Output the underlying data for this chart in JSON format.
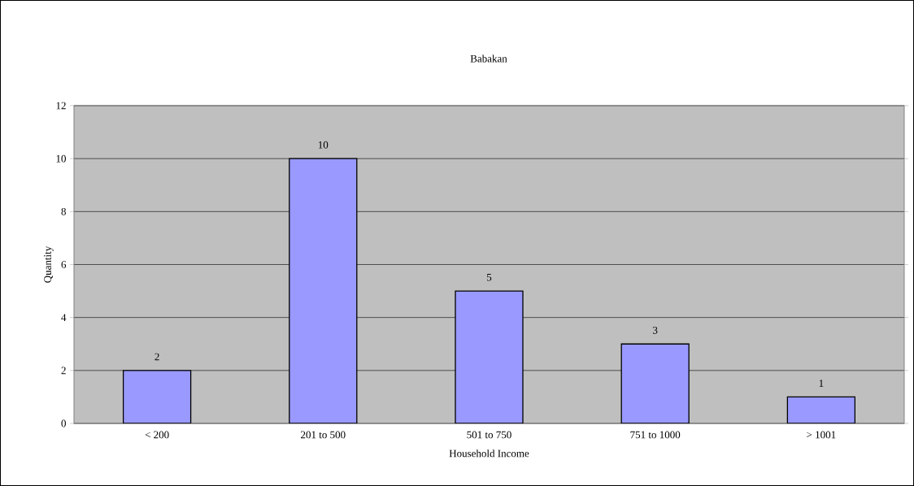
{
  "chart_data": {
    "type": "bar",
    "title": "Babakan",
    "xlabel": "Household Income",
    "ylabel": "Quantity",
    "categories": [
      "< 200",
      "201 to 500",
      "501 to 750",
      "751 to 1000",
      "> 1001"
    ],
    "values": [
      2,
      10,
      5,
      3,
      1
    ],
    "color": "#9999ff",
    "ylim": [
      0,
      12
    ],
    "yticks": [
      0,
      2,
      4,
      6,
      8,
      10,
      12
    ],
    "grid": "y",
    "data_labels": true
  }
}
